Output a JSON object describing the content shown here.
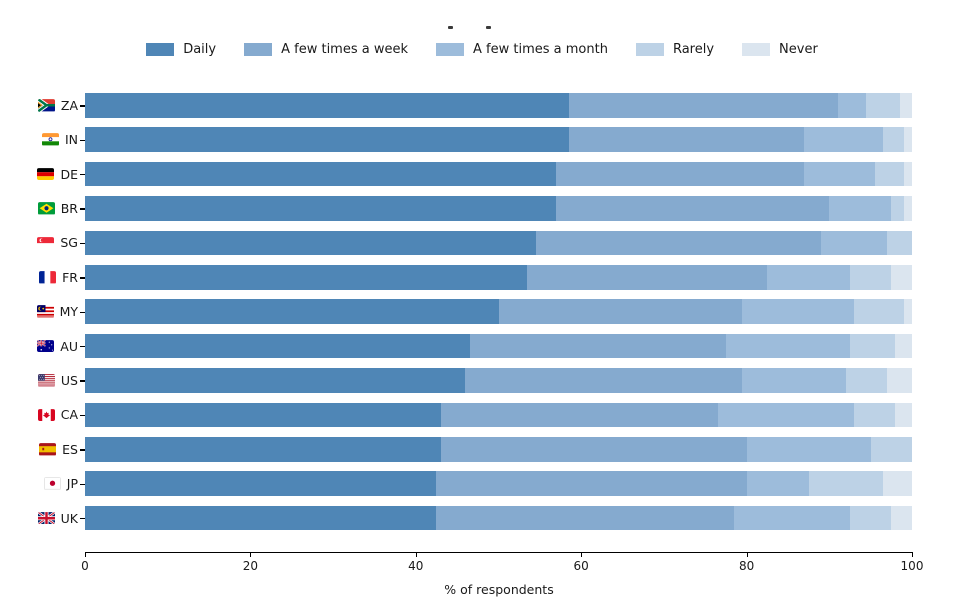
{
  "legend": {
    "position": "top center",
    "items": [
      "Daily",
      "A few times a week",
      "A few times a month",
      "Rarely",
      "Never"
    ]
  },
  "chart_data": {
    "type": "bar",
    "orientation": "horizontal",
    "stacked": true,
    "title": "",
    "xlabel": "% of respondents",
    "ylabel": "",
    "xlim": [
      0,
      100
    ],
    "xticks": [
      0,
      20,
      40,
      60,
      80,
      100
    ],
    "grid": false,
    "legend_position": "top center",
    "categories": [
      "ZA",
      "IN",
      "DE",
      "BR",
      "SG",
      "FR",
      "MY",
      "AU",
      "US",
      "CA",
      "ES",
      "JP",
      "UK"
    ],
    "flag_icons": [
      "flag-za-icon",
      "flag-in-icon",
      "flag-de-icon",
      "flag-br-icon",
      "flag-sg-icon",
      "flag-fr-icon",
      "flag-my-icon",
      "flag-au-icon",
      "flag-us-icon",
      "flag-ca-icon",
      "flag-es-icon",
      "flag-jp-icon",
      "flag-uk-icon"
    ],
    "series": [
      {
        "name": "Daily",
        "color": "#4f86b6",
        "values": [
          58.5,
          58.5,
          57.0,
          57.0,
          54.5,
          53.5,
          50.0,
          46.5,
          46.0,
          43.0,
          43.0,
          42.5,
          42.5
        ]
      },
      {
        "name": "A few times a week",
        "color": "#85aacf",
        "values": [
          32.5,
          28.5,
          30.0,
          33.0,
          34.5,
          29.0,
          29.5,
          31.0,
          33.5,
          33.5,
          37.0,
          37.5,
          36.0
        ]
      },
      {
        "name": "A few times a month",
        "color": "#9dbcdb",
        "values": [
          3.5,
          9.5,
          8.5,
          7.5,
          8.0,
          10.0,
          13.5,
          15.0,
          12.5,
          16.5,
          15.0,
          7.5,
          14.0
        ]
      },
      {
        "name": "Rarely",
        "color": "#bdd2e6",
        "values": [
          4.0,
          2.5,
          3.5,
          1.5,
          3.0,
          5.0,
          6.0,
          5.5,
          5.0,
          5.0,
          5.0,
          9.0,
          5.0
        ]
      },
      {
        "name": "Never",
        "color": "#dbe5ef",
        "values": [
          1.5,
          1.0,
          1.0,
          1.0,
          0.0,
          2.5,
          1.0,
          2.0,
          3.0,
          2.0,
          0.0,
          3.5,
          2.5
        ]
      }
    ]
  }
}
